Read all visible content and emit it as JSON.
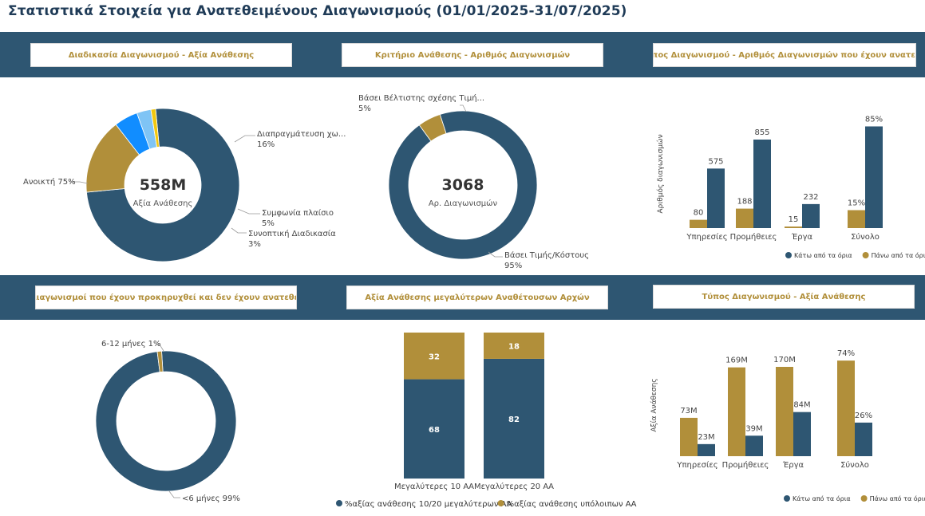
{
  "page_title": "Στατιστικά Στοιχεία για Ανατεθειμένους Διαγωνισμούς (01/01/2025-31/07/2025)",
  "colors": {
    "navy": "#2e5672",
    "gold": "#b18f3a",
    "blue": "#118dff",
    "light_blue": "#7fc4f5",
    "yellow": "#f2c80f",
    "band": "#2e5672"
  },
  "panels": {
    "p1_title": "Διαδικασία Διαγωνισμού - Αξία Ανάθεσης",
    "p2_title": "Κριτήριο Ανάθεσης - Αριθμός Διαγωνισμών",
    "p3_title": "Τύπος Διαγωνισμού - Αριθμός Διαγωνισμών που έχουν ανατεθεί",
    "p4_title": "Διαγωνισμοί που έχουν προκηρυχθεί και δεν έχουν ανατεθεί",
    "p5_title": "Αξία Ανάθεσης μεγαλύτερων Αναθέτουσων Αρχών",
    "p6_title": "Τύπος Διαγωνισμού - Αξία Ανάθεσης"
  },
  "chart_data": [
    {
      "type": "pie",
      "variant": "donut",
      "center_value": "558M",
      "center_label": "Αξία Ανάθεσης",
      "slices": [
        {
          "label": "Ανοικτή",
          "percent_label": "75%",
          "value": 75,
          "color": "#2e5672"
        },
        {
          "label": "Διαπραγμάτευση χω...",
          "percent_label": "16%",
          "value": 16,
          "color": "#b18f3a"
        },
        {
          "label": "Συμφωνία πλαίσιο",
          "percent_label": "5%",
          "value": 5,
          "color": "#118dff"
        },
        {
          "label": "Συνοπτική Διαδικασία",
          "percent_label": "3%",
          "value": 3,
          "color": "#7fc4f5"
        },
        {
          "label": "",
          "percent_label": "",
          "value": 1,
          "color": "#f2c80f"
        }
      ]
    },
    {
      "type": "pie",
      "variant": "donut",
      "center_value": "3068",
      "center_label": "Αρ. Διαγωνισμών",
      "slices": [
        {
          "label": "Βάσει Τιμής/Κόστους",
          "percent_label": "95%",
          "value": 95,
          "color": "#2e5672"
        },
        {
          "label": "Βάσει Βέλτιστης σχέσης Τιμή...",
          "percent_label": "5%",
          "value": 5,
          "color": "#b18f3a"
        }
      ]
    },
    {
      "type": "bar",
      "categories": [
        "Υπηρεσίες",
        "Προμήθειες",
        "Έργα",
        "Σύνολο"
      ],
      "ylabel": "Αριθμός διαγωνισμών",
      "series": [
        {
          "name": "Πάνω από τα όρια",
          "values": [
            80,
            188,
            15,
            15
          ],
          "labels": [
            "80",
            "188",
            "15",
            "15%"
          ],
          "color": "#b18f3a"
        },
        {
          "name": "Κάτω από τα όρια",
          "values": [
            575,
            855,
            232,
            85
          ],
          "labels": [
            "575",
            "855",
            "232",
            "85%"
          ],
          "color": "#2e5672"
        }
      ],
      "legend_order": [
        "Κάτω από τα όρια",
        "Πάνω από τα όρια"
      ]
    },
    {
      "type": "pie",
      "variant": "donut",
      "slices": [
        {
          "label": "<6 μήνες",
          "percent_label": "99%",
          "value": 99,
          "color": "#2e5672"
        },
        {
          "label": "6-12 μήνες",
          "percent_label": "1%",
          "value": 1,
          "color": "#b18f3a"
        }
      ]
    },
    {
      "type": "bar",
      "variant": "stacked-100",
      "categories": [
        "Μεγαλύτερες 10 ΑΑ",
        "Μεγαλύτερες 20 ΑΑ"
      ],
      "series": [
        {
          "name": "%αξίας ανάθεσης 10/20 μεγαλύτερων ΑΑ",
          "values": [
            68,
            82
          ],
          "color": "#2e5672"
        },
        {
          "name": "%αξίας ανάθεσης υπόλοιπων ΑΑ",
          "values": [
            32,
            18
          ],
          "color": "#b18f3a"
        }
      ]
    },
    {
      "type": "bar",
      "categories": [
        "Υπηρεσίες",
        "Προμήθειες",
        "Έργα",
        "Σύνολο"
      ],
      "ylabel": "Αξία Ανάθεσης",
      "series": [
        {
          "name": "Πάνω από τα όρια",
          "values": [
            73,
            169,
            170,
            74
          ],
          "labels": [
            "73M",
            "169M",
            "170M",
            "74%"
          ],
          "color": "#b18f3a"
        },
        {
          "name": "Κάτω από τα όρια",
          "values": [
            23,
            39,
            84,
            26
          ],
          "labels": [
            "23M",
            "39M",
            "84M",
            "26%"
          ],
          "color": "#2e5672"
        }
      ],
      "legend_order": [
        "Κάτω από τα όρια",
        "Πάνω από τα όρια"
      ]
    }
  ]
}
